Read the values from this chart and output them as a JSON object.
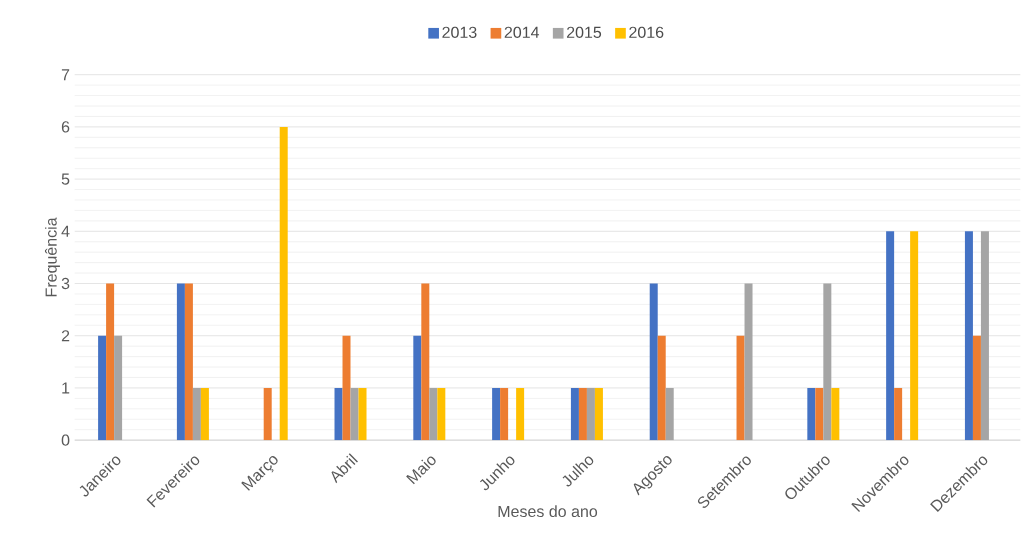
{
  "chart_data": {
    "type": "bar",
    "categories": [
      "Janeiro",
      "Fevereiro",
      "Março",
      "Abril",
      "Maio",
      "Junho",
      "Julho",
      "Agosto",
      "Setembro",
      "Outubro",
      "Novembro",
      "Dezembro"
    ],
    "series": [
      {
        "name": "2013",
        "color": "#4472c4",
        "values": [
          2,
          3,
          0,
          1,
          2,
          1,
          1,
          3,
          0,
          1,
          4,
          4
        ]
      },
      {
        "name": "2014",
        "color": "#ed7d31",
        "values": [
          3,
          3,
          1,
          2,
          3,
          1,
          1,
          2,
          2,
          1,
          1,
          2
        ]
      },
      {
        "name": "2015",
        "color": "#a5a5a5",
        "values": [
          2,
          1,
          0,
          1,
          1,
          0,
          1,
          1,
          3,
          3,
          0,
          4
        ]
      },
      {
        "name": "2016",
        "color": "#ffc000",
        "values": [
          0,
          1,
          6,
          1,
          1,
          1,
          1,
          0,
          0,
          1,
          4,
          0
        ]
      }
    ],
    "xlabel": "Meses do ano",
    "ylabel": "Frequência",
    "ylim": [
      0,
      7
    ],
    "yticks": [
      0,
      1,
      2,
      3,
      4,
      5,
      6,
      7
    ],
    "grid": "y",
    "legend": "top"
  }
}
